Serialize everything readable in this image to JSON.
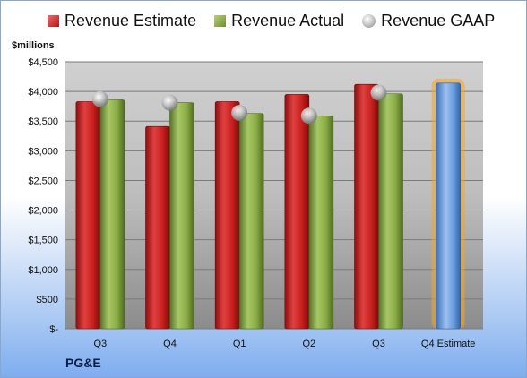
{
  "unit_label": "$millions",
  "company_label": "PG&E",
  "legend": {
    "estimate": "Revenue Estimate",
    "actual": "Revenue Actual",
    "gaap": "Revenue GAAP"
  },
  "colors": {
    "estimate": "#c8201f",
    "actual": "#8aab44",
    "gaap": "#b0b0b0",
    "forecast": "#5b8fd6",
    "forecast_glow": "#f5a623"
  },
  "chart_data": {
    "type": "bar",
    "categories": [
      "Q3",
      "Q4",
      "Q1",
      "Q2",
      "Q3",
      "Q4 Estimate"
    ],
    "series": [
      {
        "name": "Revenue Estimate",
        "values": [
          3830,
          3410,
          3830,
          3950,
          4120,
          4140
        ]
      },
      {
        "name": "Revenue Actual",
        "values": [
          3860,
          3810,
          3630,
          3590,
          3960,
          null
        ]
      },
      {
        "name": "Revenue GAAP",
        "values": [
          3870,
          3810,
          3640,
          3590,
          3980,
          null
        ]
      }
    ],
    "ylabel": "$millions",
    "ylim": [
      0,
      4500
    ],
    "yticks": [
      0,
      500,
      1000,
      1500,
      2000,
      2500,
      3000,
      3500,
      4000,
      4500
    ],
    "ytick_labels": [
      "$-",
      "$500",
      "$1,000",
      "$1,500",
      "$2,000",
      "$2,500",
      "$3,000",
      "$3,500",
      "$4,000",
      "$4,500"
    ],
    "grid": true,
    "legend_position": "top"
  }
}
